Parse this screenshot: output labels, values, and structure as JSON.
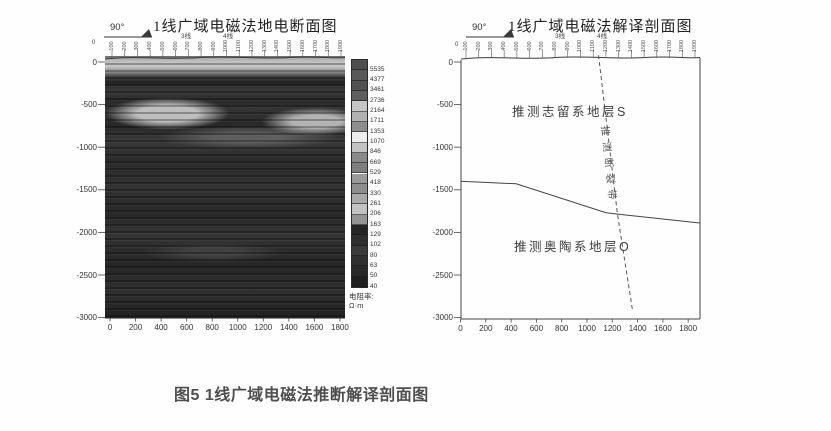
{
  "figure": {
    "caption": "图5 1线广域电磁法推断解译剖面图"
  },
  "shared": {
    "azimuth_label": "90°",
    "origin_station": "0",
    "line3_label": "3线",
    "line4_label": "4线",
    "station_labels": [
      "100",
      "200",
      "300",
      "400",
      "500",
      "600",
      "700",
      "800",
      "900",
      "1000",
      "1100",
      "1200",
      "1300",
      "1400",
      "1500",
      "1600",
      "1700",
      "1800",
      "1900"
    ],
    "depth_tick_labels": [
      "0",
      "-500",
      "-1000",
      "-1500",
      "-2000",
      "-2500",
      "-3000"
    ],
    "distance_tick_labels": [
      "0",
      "200",
      "400",
      "600",
      "800",
      "1000",
      "1200",
      "1400",
      "1600",
      "1800"
    ]
  },
  "left_panel": {
    "title": "1线广域电磁法地电断面图",
    "colorbar": {
      "unit_title": "电阻率:",
      "unit": "Ω·m",
      "values": [
        "5535",
        "4377",
        "3461",
        "2736",
        "2164",
        "1711",
        "1353",
        "1070",
        "846",
        "669",
        "529",
        "418",
        "330",
        "261",
        "206",
        "163",
        "129",
        "102",
        "80",
        "63",
        "50",
        "40"
      ],
      "colors": [
        "#4e4e4e",
        "#585858",
        "#525252",
        "#5e5e5e",
        "#c6c6c6",
        "#b2b2b2",
        "#8e8e8e",
        "#ececec",
        "#c2c2c2",
        "#8a8a8a",
        "#7e7e7e",
        "#9a9a9a",
        "#8e8e8e",
        "#aaaaaa",
        "#c2c2c2",
        "#949494",
        "#262626",
        "#2e2e2e",
        "#3a3a3a",
        "#303030",
        "#282828",
        "#1e1e1e"
      ]
    }
  },
  "right_panel": {
    "title": "1线广域电磁法解译剖面图",
    "upper_formation": "推测志留系地层S",
    "lower_formation": "推测奥陶系地层O",
    "fault_label": "推测断裂带"
  },
  "chart_data": [
    {
      "type": "heatmap",
      "title": "1线广域电磁法地电断面图",
      "x_ticks": [
        0,
        200,
        400,
        600,
        800,
        1000,
        1200,
        1400,
        1600,
        1800
      ],
      "y_ticks": [
        0,
        -500,
        -1000,
        -1500,
        -2000,
        -2500,
        -3000
      ],
      "xlim": [
        0,
        1900
      ],
      "ylim": [
        -3000,
        0
      ],
      "colorbar_values": [
        5535,
        4377,
        3461,
        2736,
        2164,
        1711,
        1353,
        1070,
        846,
        669,
        529,
        418,
        330,
        261,
        206,
        163,
        129,
        102,
        80,
        63,
        50,
        40
      ],
      "colorbar_unit": "Ω·m",
      "annotations": [
        "90°",
        "3线",
        "4线"
      ],
      "description": "灰度电阻率断面：浅部高阻薄层，-400~-700 m 两处高阻透镜体（x≈200-600 与 x≈1400-1800），深部为低阻层状条带"
    },
    {
      "type": "line",
      "title": "1线广域电磁法解译剖面图",
      "x_ticks": [
        0,
        200,
        400,
        600,
        800,
        1000,
        1200,
        1400,
        1600,
        1800
      ],
      "y_ticks": [
        0,
        -500,
        -1000,
        -1500,
        -2000,
        -2500,
        -3000
      ],
      "xlim": [
        0,
        1900
      ],
      "ylim": [
        -3000,
        0
      ],
      "series": [
        {
          "name": "志留系/奥陶系地层界线",
          "style": "solid",
          "x": [
            0,
            440,
            1150,
            1260,
            1890
          ],
          "y": [
            -1400,
            -1430,
            -1770,
            -1790,
            -1890
          ]
        },
        {
          "name": "推测断裂带",
          "style": "dashed",
          "x": [
            1090,
            1240,
            1360
          ],
          "y": [
            80,
            -1790,
            -2930
          ]
        }
      ],
      "labels": [
        {
          "text": "推测志留系地层S",
          "x": 800,
          "y": -550
        },
        {
          "text": "推测奥陶系地层O",
          "x": 900,
          "y": -2150
        },
        {
          "text": "推测断裂带",
          "x": 1150,
          "y": -1200,
          "rotated": true
        }
      ],
      "annotations": [
        "90°",
        "3线",
        "4线"
      ]
    }
  ]
}
